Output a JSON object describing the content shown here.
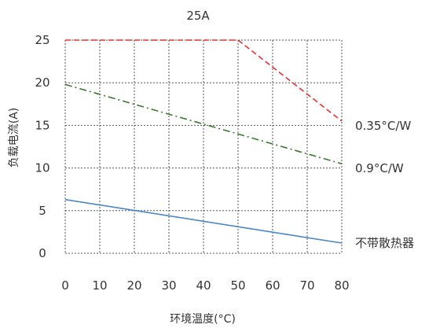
{
  "chart_data": {
    "type": "line",
    "title": "25A",
    "xlabel": "环境温度(°C)",
    "ylabel": "负载电流(A)",
    "xlim": [
      0,
      80
    ],
    "ylim": [
      0,
      25
    ],
    "x_ticks": [
      "0",
      "10",
      "20",
      "30",
      "40",
      "50",
      "60",
      "70",
      "80"
    ],
    "y_ticks": [
      "0",
      "5",
      "10",
      "15",
      "20",
      "25"
    ],
    "grid": true,
    "grid_style": "dotted",
    "legend": "direct labels at right end of lines",
    "series": [
      {
        "name": "0.35°C/W",
        "color": "#e8302e",
        "dash": "dashed",
        "points": [
          [
            0,
            25
          ],
          [
            50,
            25
          ],
          [
            80,
            15.5
          ]
        ]
      },
      {
        "name": "0.9°C/W",
        "color": "#3a7a2e",
        "dash": "dash-dot",
        "points": [
          [
            0,
            19.8
          ],
          [
            80,
            10.5
          ]
        ]
      },
      {
        "name": "不带散热器",
        "color": "#4a86c8",
        "dash": "solid",
        "points": [
          [
            0,
            6.3
          ],
          [
            80,
            1.2
          ]
        ]
      }
    ]
  }
}
